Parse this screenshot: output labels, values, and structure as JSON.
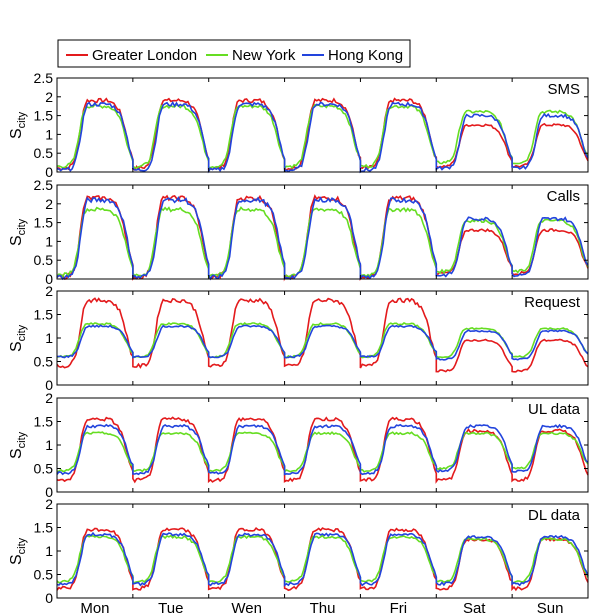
{
  "chart_data": {
    "type": "line",
    "x_tick_labels": [
      "Mon",
      "Tue",
      "Wen",
      "Thu",
      "Fri",
      "Sat",
      "Sun"
    ],
    "ylabel_main": "S",
    "ylabel_sub": "city",
    "legend": {
      "placement": "top-left",
      "entries": [
        {
          "name": "Greater London",
          "color": "#e31a1c"
        },
        {
          "name": "New York",
          "color": "#66dd22"
        },
        {
          "name": "Hong Kong",
          "color": "#2244dd"
        }
      ]
    },
    "panels": [
      {
        "title": "SMS",
        "ylim": [
          0,
          2.5
        ],
        "yticks": [
          "0",
          "0.5",
          "1",
          "1.5",
          "2",
          "2.5"
        ],
        "profiles": {
          "Greater London": {
            "weekday": {
              "min": 0.1,
              "max": 1.9
            },
            "weekend": {
              "min": 0.15,
              "max": 1.25
            }
          },
          "New York": {
            "weekday": {
              "min": 0.15,
              "max": 1.75
            },
            "weekend": {
              "min": 0.25,
              "max": 1.6
            }
          },
          "Hong Kong": {
            "weekday": {
              "min": 0.05,
              "max": 1.8
            },
            "weekend": {
              "min": 0.1,
              "max": 1.5
            }
          }
        }
      },
      {
        "title": "Calls",
        "ylim": [
          0,
          2.5
        ],
        "yticks": [
          "0",
          "0.5",
          "1",
          "1.5",
          "2",
          "2.5"
        ],
        "profiles": {
          "Greater London": {
            "weekday": {
              "min": 0.05,
              "max": 2.15
            },
            "weekend": {
              "min": 0.15,
              "max": 1.3
            }
          },
          "New York": {
            "weekday": {
              "min": 0.1,
              "max": 1.85
            },
            "weekend": {
              "min": 0.2,
              "max": 1.55
            }
          },
          "Hong Kong": {
            "weekday": {
              "min": 0.05,
              "max": 2.1
            },
            "weekend": {
              "min": 0.1,
              "max": 1.6
            }
          }
        }
      },
      {
        "title": "Request",
        "ylim": [
          0,
          2
        ],
        "yticks": [
          "0",
          "0.5",
          "1",
          "1.5",
          "2"
        ],
        "profiles": {
          "Greater London": {
            "weekday": {
              "min": 0.4,
              "max": 1.8
            },
            "weekend": {
              "min": 0.3,
              "max": 0.95
            }
          },
          "New York": {
            "weekday": {
              "min": 0.6,
              "max": 1.3
            },
            "weekend": {
              "min": 0.6,
              "max": 1.2
            }
          },
          "Hong Kong": {
            "weekday": {
              "min": 0.6,
              "max": 1.25
            },
            "weekend": {
              "min": 0.55,
              "max": 1.15
            }
          }
        }
      },
      {
        "title": "UL data",
        "ylim": [
          0,
          2
        ],
        "yticks": [
          "0",
          "0.5",
          "1",
          "1.5",
          "2"
        ],
        "profiles": {
          "Greater London": {
            "weekday": {
              "min": 0.25,
              "max": 1.55
            },
            "weekend": {
              "min": 0.25,
              "max": 1.3
            }
          },
          "New York": {
            "weekday": {
              "min": 0.45,
              "max": 1.25
            },
            "weekend": {
              "min": 0.5,
              "max": 1.25
            }
          },
          "Hong Kong": {
            "weekday": {
              "min": 0.4,
              "max": 1.4
            },
            "weekend": {
              "min": 0.45,
              "max": 1.4
            }
          }
        }
      },
      {
        "title": "DL data",
        "ylim": [
          0,
          2
        ],
        "yticks": [
          "0",
          "0.5",
          "1",
          "1.5",
          "2"
        ],
        "profiles": {
          "Greater London": {
            "weekday": {
              "min": 0.2,
              "max": 1.45
            },
            "weekend": {
              "min": 0.2,
              "max": 1.25
            }
          },
          "New York": {
            "weekday": {
              "min": 0.35,
              "max": 1.3
            },
            "weekend": {
              "min": 0.35,
              "max": 1.25
            }
          },
          "Hong Kong": {
            "weekday": {
              "min": 0.3,
              "max": 1.35
            },
            "weekend": {
              "min": 0.3,
              "max": 1.3
            }
          }
        }
      }
    ]
  }
}
